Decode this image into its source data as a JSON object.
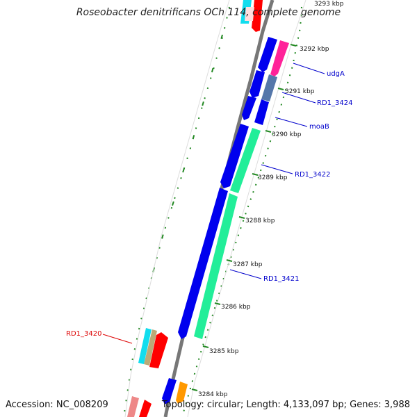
{
  "title": "Roseobacter denitrificans OCh 114, complete genome",
  "accession": "Accession: NC_008209",
  "topology": "Topology: circular; Length: 4,133,097 bp; Genes: 3,988",
  "ticks": {
    "top_partial": "3293 kbp",
    "t3292": "3292 kbp",
    "t3291": "3291 kbp",
    "t3290": "3290 kbp",
    "t3289": "3289 kbp",
    "t3288": "3288 kbp",
    "t3287": "3287 kbp",
    "t3286": "3286 kbp",
    "t3285": "3285 kbp",
    "t3284": "3284 kbp"
  },
  "genes": {
    "udgA": "udgA",
    "rd1_3424": "RD1_3424",
    "moaB": "moaB",
    "rd1_3422": "RD1_3422",
    "rd1_3421": "RD1_3421",
    "rd1_3420": "RD1_3420"
  },
  "colors": {
    "backbone": "#777777",
    "cds_blue": "#0000ee",
    "cds_green": "#22ee99",
    "cds_pink": "#ff2299",
    "cds_steel": "#5577aa",
    "cds_red": "#ff0000",
    "cds_cyan": "#11ddee",
    "cds_tan": "#bbaa77",
    "cds_orange": "#ff9900",
    "cds_salmon": "#ee8888",
    "gc_dots": "#228822",
    "label_blue": "#0000cc",
    "label_red": "#dd0000"
  }
}
